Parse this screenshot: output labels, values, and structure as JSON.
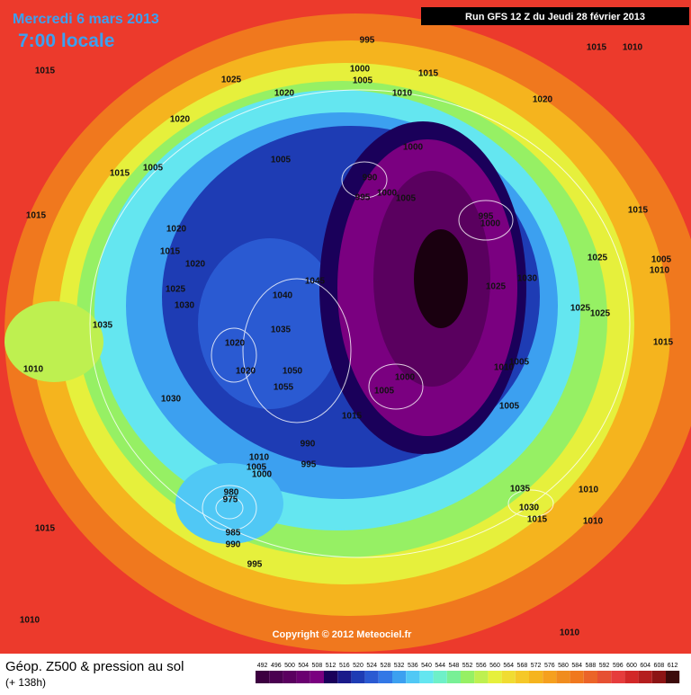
{
  "header": {
    "date": "Mercredi 6 mars 2013",
    "time": "7:00 locale",
    "run": "Run GFS 12 Z du Jeudi 28 février 2013"
  },
  "copyright": "Copyright © 2012 Meteociel.fr",
  "footer": {
    "title": "Géop. Z500 & pression au sol",
    "lead": "(+ 138h)"
  },
  "colorbar": {
    "ticks": [
      492,
      496,
      500,
      504,
      508,
      512,
      516,
      520,
      524,
      528,
      532,
      536,
      540,
      544,
      548,
      552,
      556,
      560,
      564,
      568,
      572,
      576,
      580,
      584,
      588,
      592,
      596,
      600,
      604,
      608,
      612
    ],
    "colors": [
      "#3c0040",
      "#4a0050",
      "#5a005f",
      "#6a0070",
      "#7a0080",
      "#1a005a",
      "#1a1a8a",
      "#1e3cb4",
      "#2a5ad2",
      "#3278e6",
      "#3ca0f0",
      "#50c8f5",
      "#64e6f0",
      "#6ef0c8",
      "#78f096",
      "#96f064",
      "#bef050",
      "#e6f03c",
      "#f0dc32",
      "#f5c828",
      "#f5b41e",
      "#f5a01e",
      "#f08c1e",
      "#f0781e",
      "#eb6428",
      "#e65032",
      "#e63c3c",
      "#d22828",
      "#b41e1e",
      "#8c1414",
      "#3c0a0a"
    ]
  },
  "labels": [
    "995",
    "1000",
    "1005",
    "1015",
    "1015",
    "1010",
    "1015",
    "1025",
    "1020",
    "1010",
    "1020",
    "1020",
    "1000",
    "1005",
    "1005",
    "1015",
    "990",
    "995",
    "1000",
    "1005",
    "995",
    "1000",
    "1015",
    "1020",
    "1015",
    "1015",
    "1020",
    "1025",
    "1005",
    "1045",
    "1040",
    "1025",
    "1030",
    "1025",
    "1030",
    "1025",
    "1025",
    "1010",
    "1035",
    "1035",
    "1020",
    "1015",
    "1005",
    "1010",
    "1050",
    "1020",
    "1055",
    "1000",
    "1005",
    "1010",
    "1005",
    "1030",
    "1015",
    "990",
    "995",
    "1010",
    "1005",
    "1000",
    "980",
    "975",
    "985",
    "990",
    "995",
    "1035",
    "1030",
    "1015",
    "1010",
    "1010",
    "1010",
    "1015",
    "1010"
  ]
}
